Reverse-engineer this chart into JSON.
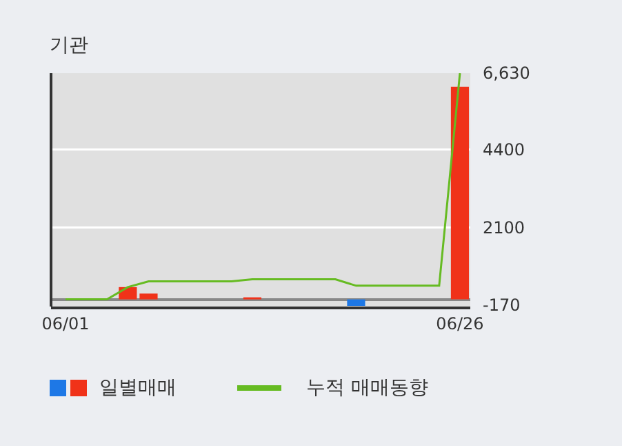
{
  "chart_data": {
    "type": "bar",
    "title": "기관",
    "categories": [
      "06/01",
      null,
      null,
      null,
      null,
      null,
      null,
      null,
      null,
      null,
      null,
      null,
      null,
      null,
      null,
      null,
      null,
      null,
      null,
      "06/26"
    ],
    "series": [
      {
        "name": "일별매매",
        "colors": [
          "#f03219",
          "#f03219",
          "#f03219",
          "#f03219",
          "#f03219",
          "#f03219",
          "#f03219",
          "#f03219",
          "#f03219",
          "#f03219",
          "#f03219",
          "#f03219",
          "#f03219",
          "#f03219",
          "#1e78e6",
          "#f03219",
          "#f03219",
          "#f03219",
          "#f03219",
          "#f03219"
        ],
        "values": [
          0,
          0,
          0,
          360,
          170,
          0,
          0,
          0,
          0,
          60,
          0,
          0,
          0,
          0,
          -190,
          0,
          0,
          0,
          0,
          6230
        ]
      },
      {
        "name": "누적 매매동향",
        "type": "line",
        "color": "#66bb22",
        "values": [
          0,
          0,
          0,
          360,
          530,
          530,
          530,
          530,
          530,
          590,
          590,
          590,
          590,
          590,
          400,
          400,
          400,
          400,
          400,
          6630
        ]
      }
    ],
    "ylim": [
      -210,
      6630
    ],
    "yticks": [
      {
        "value": 6630,
        "label": "6,630"
      },
      4400,
      2100,
      -170
    ],
    "grid": "y",
    "legend": "bottom"
  }
}
